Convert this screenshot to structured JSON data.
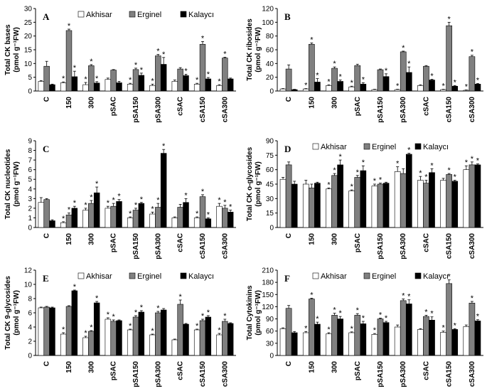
{
  "series_colors": {
    "Akhisar": "#ffffff",
    "Erginel": "#808080",
    "Kalaycı": "#000000"
  },
  "chart_data": [
    {
      "type": "bar",
      "panel": "A",
      "ylabel": "Total CK bases",
      "ylabel_unit": "(pmol g⁻¹FW)",
      "ylim": [
        0,
        30
      ],
      "yticks": [
        0,
        5,
        10,
        15,
        20,
        25,
        30
      ],
      "categories": [
        "C",
        "150",
        "300",
        "pSAC",
        "pSA150",
        "pSA300",
        "cSAC",
        "cSA150",
        "cSA300"
      ],
      "series": [
        {
          "name": "Akhisar",
          "values": [
            3.5,
            3.0,
            2.3,
            4.2,
            2.5,
            2.0,
            3.5,
            2.5,
            2.0
          ],
          "errors": [
            0.3,
            0.3,
            0.8,
            0.5,
            0.3,
            0.5,
            0.5,
            0.3,
            0.3
          ],
          "stars": [
            false,
            true,
            true,
            false,
            true,
            true,
            false,
            true,
            true
          ]
        },
        {
          "name": "Erginel",
          "values": [
            9.0,
            22.0,
            9.2,
            7.6,
            7.8,
            12.8,
            8.0,
            17.0,
            12.0
          ],
          "errors": [
            1.8,
            0.5,
            0.4,
            0.2,
            0.5,
            0.5,
            0.5,
            1.0,
            0.3
          ],
          "stars": [
            false,
            true,
            true,
            false,
            true,
            true,
            false,
            true,
            true
          ]
        },
        {
          "name": "Kalaycı",
          "values": [
            2.3,
            5.2,
            2.9,
            3.0,
            5.7,
            9.7,
            5.6,
            4.4,
            4.4
          ],
          "errors": [
            0.2,
            2.0,
            0.5,
            0.5,
            0.8,
            2.5,
            0.5,
            0.5,
            0.3
          ],
          "stars": [
            false,
            true,
            true,
            false,
            true,
            true,
            true,
            true,
            false
          ]
        }
      ]
    },
    {
      "type": "bar",
      "panel": "B",
      "ylabel": "Total CK ribosides",
      "ylabel_unit": "(pmol g⁻¹FW)",
      "ylim": [
        0,
        120
      ],
      "yticks": [
        0,
        20,
        40,
        60,
        80,
        100,
        120
      ],
      "categories": [
        "C",
        "150",
        "300",
        "pSAC",
        "pSA150",
        "pSA300",
        "cSAC",
        "cSA150",
        "cSA300"
      ],
      "series": [
        {
          "name": "Akhisar",
          "values": [
            3,
            3,
            8,
            6,
            2,
            2,
            8,
            2,
            1
          ],
          "errors": [
            0.5,
            0.5,
            1.0,
            1.0,
            0.5,
            0.5,
            1.0,
            0.5,
            0.5
          ],
          "stars": [
            false,
            true,
            true,
            true,
            false,
            true,
            false,
            true,
            true
          ]
        },
        {
          "name": "Erginel",
          "values": [
            32,
            68,
            33,
            37,
            31,
            57,
            36,
            95,
            50
          ],
          "errors": [
            6,
            2,
            2,
            2,
            1,
            1,
            1,
            5,
            2
          ],
          "stars": [
            false,
            true,
            true,
            false,
            false,
            true,
            false,
            true,
            true
          ]
        },
        {
          "name": "Kalaycı",
          "values": [
            2,
            13,
            14,
            10,
            21,
            27,
            16,
            7,
            10
          ],
          "errors": [
            0.5,
            5,
            2,
            2,
            4,
            8,
            1,
            1,
            1
          ],
          "stars": [
            false,
            true,
            true,
            true,
            true,
            true,
            true,
            true,
            true
          ]
        }
      ]
    },
    {
      "type": "bar",
      "panel": "C",
      "ylabel": "Total CK nucleotides",
      "ylabel_unit": "(pmol g⁻¹FW)",
      "ylim": [
        0,
        9
      ],
      "yticks": [
        0,
        1,
        2,
        3,
        4,
        5,
        6,
        7,
        8,
        9
      ],
      "categories": [
        "C",
        "150",
        "300",
        "pSAC",
        "pSA150",
        "pSA300",
        "cSAC",
        "cSA150",
        "cSA300"
      ],
      "series": [
        {
          "name": "Akhisar",
          "values": [
            2.6,
            0.5,
            1.8,
            2.0,
            1.0,
            1.4,
            1.0,
            1.0,
            2.2
          ],
          "errors": [
            0.5,
            0.1,
            0.2,
            0.2,
            0.1,
            0.2,
            0.1,
            0.1,
            0.3
          ],
          "stars": [
            false,
            true,
            true,
            true,
            true,
            true,
            false,
            true,
            true
          ]
        },
        {
          "name": "Erginel",
          "values": [
            2.9,
            1.3,
            2.5,
            2.2,
            1.8,
            2.1,
            2.1,
            3.2,
            2.0
          ],
          "errors": [
            0.1,
            0.2,
            0.3,
            0.3,
            0.2,
            0.4,
            0.3,
            0.2,
            0.3
          ],
          "stars": [
            false,
            true,
            true,
            true,
            true,
            true,
            false,
            true,
            true
          ]
        },
        {
          "name": "Kalaycı",
          "values": [
            0.7,
            2.0,
            3.6,
            2.7,
            2.5,
            7.7,
            2.6,
            0.9,
            1.6
          ],
          "errors": [
            0.1,
            0.2,
            0.6,
            0.2,
            0.1,
            0.4,
            0.4,
            0.1,
            0.2
          ],
          "stars": [
            false,
            true,
            true,
            true,
            true,
            true,
            true,
            true,
            true
          ]
        }
      ]
    },
    {
      "type": "bar",
      "panel": "D",
      "ylabel": "Total CK o-glycosides",
      "ylabel_unit": "(pmol g⁻¹FW)",
      "ylim": [
        0,
        90
      ],
      "yticks": [
        0,
        15,
        30,
        45,
        60,
        75,
        90
      ],
      "categories": [
        "C",
        "150",
        "300",
        "pSAC",
        "pSA150",
        "pSA300",
        "cSAC",
        "cSA150",
        "cSA300"
      ],
      "series": [
        {
          "name": "Akhisar",
          "values": [
            50,
            45,
            40,
            38,
            43,
            58,
            49,
            49,
            60
          ],
          "errors": [
            2,
            4,
            1,
            1,
            2,
            5,
            4,
            2,
            4
          ],
          "stars": [
            false,
            false,
            true,
            true,
            true,
            true,
            true,
            false,
            true
          ]
        },
        {
          "name": "Erginel",
          "values": [
            65,
            41,
            54,
            52,
            45,
            56,
            46,
            55,
            65
          ],
          "errors": [
            3,
            4,
            2,
            2,
            1,
            5,
            3,
            1,
            3
          ],
          "stars": [
            false,
            false,
            true,
            true,
            true,
            false,
            true,
            true,
            true
          ]
        },
        {
          "name": "Kalaycı",
          "values": [
            45,
            46,
            65,
            59,
            46,
            76,
            57,
            48,
            65
          ],
          "errors": [
            3,
            1,
            5,
            5,
            1,
            1,
            4,
            1,
            1
          ],
          "stars": [
            false,
            false,
            true,
            true,
            false,
            true,
            true,
            true,
            true
          ]
        }
      ]
    },
    {
      "type": "bar",
      "panel": "E",
      "ylabel": "Total CK 9-glycosides",
      "ylabel_unit": "(pmol g⁻¹FW)",
      "ylim": [
        0,
        12
      ],
      "yticks": [
        0,
        2,
        4,
        6,
        8,
        10,
        12
      ],
      "categories": [
        "C",
        "150",
        "300",
        "pSAC",
        "pSA150",
        "pSA300",
        "cSAC",
        "cSA150",
        "cSA300"
      ],
      "series": [
        {
          "name": "Akhisar",
          "values": [
            6.7,
            3.0,
            2.5,
            5.1,
            3.6,
            2.9,
            2.2,
            3.6,
            2.9
          ],
          "errors": [
            0.1,
            0.2,
            0.2,
            0.2,
            0.1,
            0.1,
            0.1,
            0.1,
            0.2
          ],
          "stars": [
            false,
            true,
            true,
            true,
            true,
            true,
            false,
            true,
            true
          ]
        },
        {
          "name": "Erginel",
          "values": [
            6.8,
            6.9,
            3.4,
            4.8,
            5.4,
            6.0,
            7.2,
            4.9,
            4.8
          ],
          "errors": [
            0.1,
            0.1,
            0.1,
            0.2,
            0.2,
            0.2,
            0.6,
            0.2,
            0.3
          ],
          "stars": [
            false,
            false,
            true,
            true,
            true,
            true,
            true,
            true,
            true
          ]
        },
        {
          "name": "Kalaycı",
          "values": [
            6.7,
            9.1,
            7.4,
            4.9,
            6.1,
            6.4,
            4.4,
            5.4,
            4.5
          ],
          "errors": [
            0.1,
            0.1,
            0.2,
            0.1,
            0.2,
            0.2,
            0.1,
            0.2,
            0.1
          ],
          "stars": [
            false,
            true,
            true,
            false,
            true,
            false,
            false,
            true,
            false
          ]
        }
      ]
    },
    {
      "type": "bar",
      "panel": "F",
      "ylabel": "Total Cytokinins",
      "ylabel_unit": "(pmol g⁻¹FW)",
      "ylim": [
        0,
        210
      ],
      "yticks": [
        0,
        30,
        60,
        90,
        120,
        150,
        180,
        210
      ],
      "categories": [
        "C",
        "150",
        "300",
        "pSAC",
        "pSA150",
        "pSA300",
        "cSAC",
        "cSA150",
        "cSA300"
      ],
      "series": [
        {
          "name": "Akhisar",
          "values": [
            66,
            56,
            53,
            56,
            52,
            70,
            64,
            57,
            71
          ],
          "errors": [
            2,
            3,
            3,
            2,
            2,
            5,
            2,
            3,
            4
          ],
          "stars": [
            false,
            true,
            true,
            true,
            true,
            false,
            false,
            true,
            false
          ]
        },
        {
          "name": "Erginel",
          "values": [
            116,
            139,
            99,
            99,
            90,
            135,
            96,
            177,
            129
          ],
          "errors": [
            7,
            2,
            5,
            4,
            2,
            4,
            3,
            9,
            4
          ],
          "stars": [
            false,
            true,
            true,
            true,
            true,
            true,
            true,
            true,
            true
          ]
        },
        {
          "name": "Kalaycı",
          "values": [
            56,
            77,
            90,
            78,
            81,
            127,
            87,
            64,
            85
          ],
          "errors": [
            3,
            5,
            6,
            6,
            3,
            10,
            8,
            2,
            3
          ],
          "stars": [
            false,
            true,
            true,
            true,
            true,
            true,
            true,
            true,
            true
          ]
        }
      ]
    }
  ]
}
